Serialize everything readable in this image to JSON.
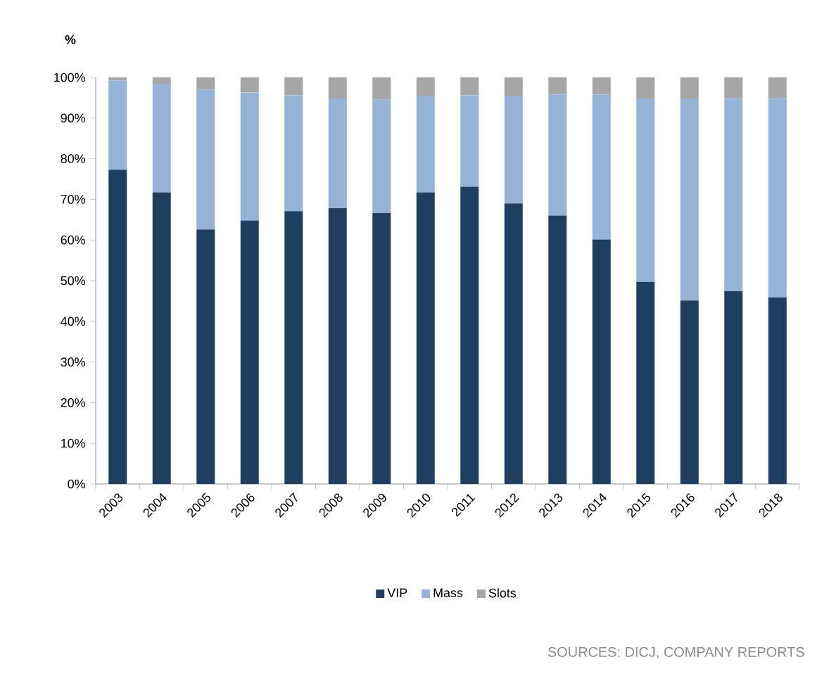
{
  "chart_data": {
    "type": "bar",
    "stacked": true,
    "ylabel": "%",
    "categories": [
      "2003",
      "2004",
      "2005",
      "2006",
      "2007",
      "2008",
      "2009",
      "2010",
      "2011",
      "2012",
      "2013",
      "2014",
      "2015",
      "2016",
      "2017",
      "2018"
    ],
    "series": [
      {
        "name": "VIP",
        "color": "#1f3f60",
        "values": [
          77.3,
          71.7,
          62.6,
          64.8,
          67.1,
          67.8,
          66.6,
          71.7,
          73.1,
          69.0,
          66.0,
          60.1,
          49.7,
          45.1,
          47.4,
          45.9
        ]
      },
      {
        "name": "Mass",
        "color": "#95b3d7",
        "values": [
          21.9,
          26.6,
          34.4,
          31.5,
          28.5,
          27.0,
          27.9,
          23.8,
          22.5,
          26.5,
          29.8,
          35.7,
          45.1,
          49.7,
          47.5,
          49.0
        ]
      },
      {
        "name": "Slots",
        "color": "#a6a6a6",
        "values": [
          0.8,
          1.7,
          3.0,
          3.7,
          4.4,
          5.2,
          5.5,
          4.5,
          4.4,
          4.5,
          4.2,
          4.2,
          5.2,
          5.2,
          5.1,
          5.1
        ]
      }
    ],
    "ylim": [
      0,
      100
    ],
    "yticks": [
      {
        "value": 0,
        "label": "0%"
      },
      {
        "value": 10,
        "label": "10%"
      },
      {
        "value": 20,
        "label": "20%"
      },
      {
        "value": 30,
        "label": "30%"
      },
      {
        "value": 40,
        "label": "40%"
      },
      {
        "value": 50,
        "label": "50%"
      },
      {
        "value": 60,
        "label": "60%"
      },
      {
        "value": 70,
        "label": "70%"
      },
      {
        "value": 80,
        "label": "80%"
      },
      {
        "value": 90,
        "label": "90%"
      },
      {
        "value": 100,
        "label": "100%"
      }
    ],
    "legend": "bottom",
    "annotations": [
      "SOURCES: DICJ, COMPANY REPORTS"
    ]
  }
}
